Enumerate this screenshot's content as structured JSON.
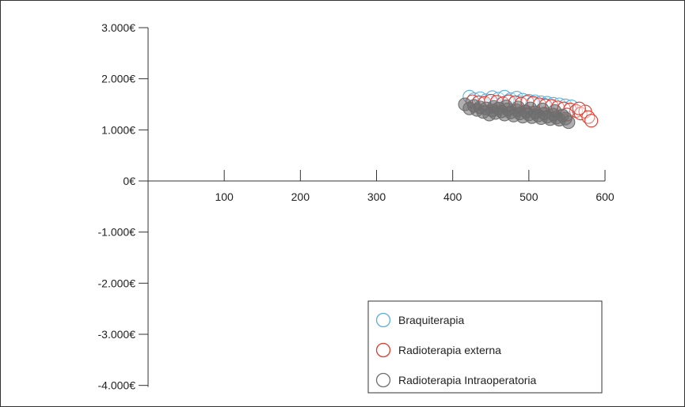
{
  "chart_data": {
    "type": "scatter",
    "title": "",
    "xlabel": "",
    "ylabel": "",
    "xlim": [
      0,
      600
    ],
    "ylim": [
      -4000,
      3000
    ],
    "x_ticks": [
      100,
      200,
      300,
      400,
      500,
      600
    ],
    "y_ticks": [
      3000,
      2000,
      1000,
      0,
      -1000,
      -2000,
      -3000,
      -4000
    ],
    "y_tick_labels": [
      "3.000€",
      "2.000€",
      "1.000€",
      "0€",
      "-1.000€",
      "-2.000€",
      "-3.000€",
      "-4.000€"
    ],
    "x_tick_labels": [
      "100",
      "200",
      "300",
      "400",
      "500",
      "600"
    ],
    "grid": false,
    "legend_position": "bottom-right",
    "marker": "open-circle",
    "series": [
      {
        "name": "Braquiterapia",
        "color": "#5aaee0",
        "points": [
          [
            422,
            1650
          ],
          [
            428,
            1600
          ],
          [
            436,
            1620
          ],
          [
            444,
            1580
          ],
          [
            452,
            1640
          ],
          [
            460,
            1610
          ],
          [
            468,
            1650
          ],
          [
            476,
            1600
          ],
          [
            484,
            1630
          ],
          [
            492,
            1590
          ],
          [
            500,
            1570
          ],
          [
            508,
            1560
          ],
          [
            516,
            1540
          ],
          [
            524,
            1530
          ],
          [
            532,
            1510
          ],
          [
            540,
            1500
          ],
          [
            548,
            1480
          ],
          [
            556,
            1460
          ],
          [
            440,
            1520
          ],
          [
            456,
            1500
          ],
          [
            472,
            1560
          ],
          [
            488,
            1540
          ],
          [
            504,
            1520
          ],
          [
            520,
            1490
          ]
        ]
      },
      {
        "name": "Radioterapia externa",
        "color": "#e0392b",
        "points": [
          [
            426,
            1560
          ],
          [
            434,
            1540
          ],
          [
            442,
            1530
          ],
          [
            450,
            1570
          ],
          [
            458,
            1550
          ],
          [
            466,
            1520
          ],
          [
            474,
            1560
          ],
          [
            482,
            1540
          ],
          [
            490,
            1510
          ],
          [
            498,
            1550
          ],
          [
            506,
            1530
          ],
          [
            514,
            1500
          ],
          [
            522,
            1480
          ],
          [
            530,
            1470
          ],
          [
            538,
            1440
          ],
          [
            546,
            1420
          ],
          [
            554,
            1400
          ],
          [
            562,
            1370
          ],
          [
            568,
            1320
          ],
          [
            574,
            1360
          ],
          [
            578,
            1250
          ],
          [
            582,
            1180
          ],
          [
            566,
            1420
          ],
          [
            550,
            1300
          ]
        ]
      },
      {
        "name": "Radioterapia Intraoperatoria",
        "color": "#6e6e6e",
        "points": [
          [
            416,
            1500
          ],
          [
            422,
            1420
          ],
          [
            428,
            1470
          ],
          [
            432,
            1390
          ],
          [
            436,
            1440
          ],
          [
            440,
            1350
          ],
          [
            444,
            1420
          ],
          [
            448,
            1300
          ],
          [
            452,
            1380
          ],
          [
            456,
            1330
          ],
          [
            460,
            1420
          ],
          [
            464,
            1360
          ],
          [
            468,
            1300
          ],
          [
            472,
            1400
          ],
          [
            476,
            1340
          ],
          [
            480,
            1280
          ],
          [
            484,
            1380
          ],
          [
            488,
            1320
          ],
          [
            492,
            1260
          ],
          [
            496,
            1360
          ],
          [
            500,
            1300
          ],
          [
            504,
            1250
          ],
          [
            508,
            1340
          ],
          [
            512,
            1280
          ],
          [
            516,
            1230
          ],
          [
            520,
            1320
          ],
          [
            524,
            1260
          ],
          [
            528,
            1210
          ],
          [
            532,
            1300
          ],
          [
            536,
            1240
          ],
          [
            540,
            1200
          ],
          [
            544,
            1280
          ],
          [
            548,
            1220
          ],
          [
            552,
            1150
          ],
          [
            454,
            1450
          ],
          [
            470,
            1460
          ],
          [
            486,
            1440
          ],
          [
            502,
            1420
          ],
          [
            518,
            1400
          ],
          [
            534,
            1370
          ]
        ]
      }
    ]
  }
}
